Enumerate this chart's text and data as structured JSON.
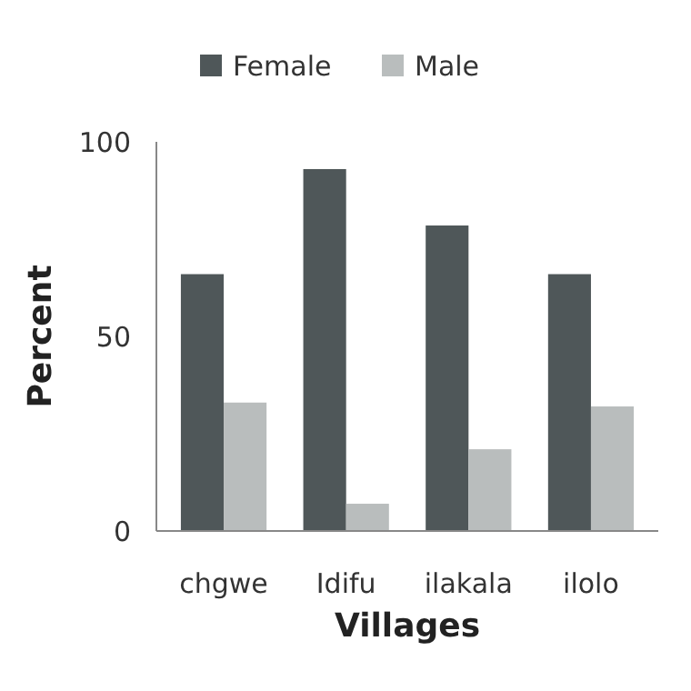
{
  "chart_data": {
    "type": "bar",
    "xlabel": "Villages",
    "ylabel": "Percent",
    "categories": [
      "chgwe",
      "Idifu",
      "ilakala",
      "ilolo"
    ],
    "series": [
      {
        "name": "Female",
        "color": "#4f5759",
        "values": [
          66,
          93,
          78.5,
          66
        ]
      },
      {
        "name": "Male",
        "color": "#b9bdbd",
        "values": [
          33,
          7,
          21,
          32
        ]
      }
    ],
    "ylim": [
      0,
      100
    ],
    "yticks": [
      0,
      50,
      100
    ],
    "legend": "top",
    "grid": false
  }
}
